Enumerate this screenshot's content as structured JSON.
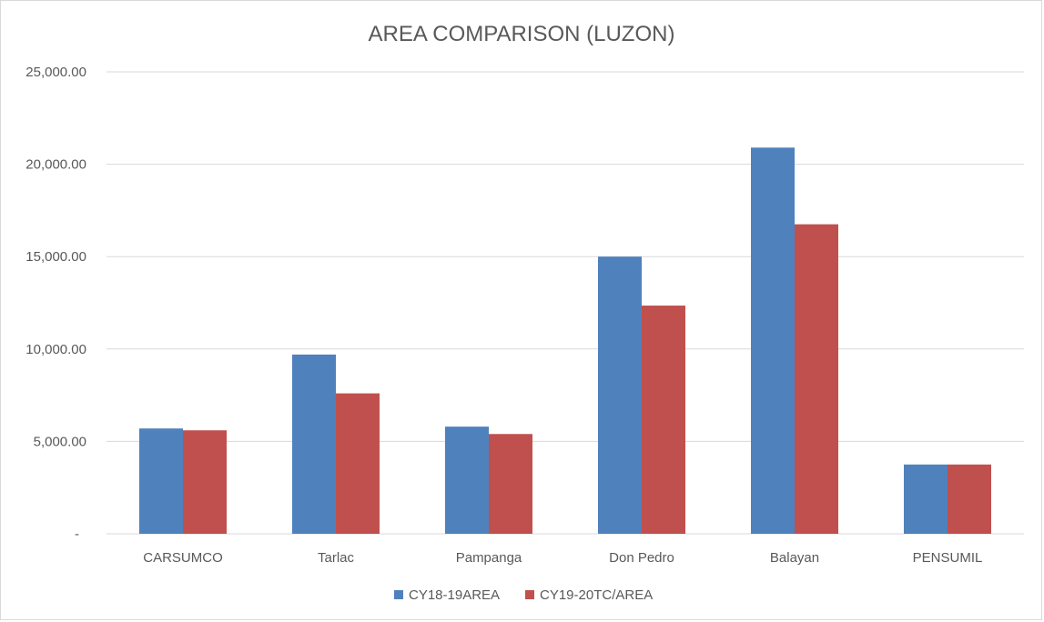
{
  "chart_data": {
    "type": "bar",
    "title": "AREA COMPARISON (LUZON)",
    "xlabel": "",
    "ylabel": "",
    "categories": [
      "CARSUMCO",
      "Tarlac",
      "Pampanga",
      "Don Pedro",
      "Balayan",
      "PENSUMIL"
    ],
    "series": [
      {
        "name": "CY18-19AREA",
        "color": "#4f81bd",
        "values": [
          5700,
          9700,
          5800,
          15000,
          20900,
          3750
        ]
      },
      {
        "name": "CY19-20TC/AREA",
        "color": "#c0504d",
        "values": [
          5600,
          7600,
          5400,
          12350,
          16750,
          3750
        ]
      }
    ],
    "ylim": [
      0,
      25000
    ],
    "y_ticks": [
      0,
      5000,
      10000,
      15000,
      20000,
      25000
    ],
    "y_tick_labels": [
      "-",
      "5,000.00",
      "10,000.00",
      "15,000.00",
      "20,000.00",
      "25,000.00"
    ],
    "grid": true,
    "legend_position": "bottom"
  }
}
